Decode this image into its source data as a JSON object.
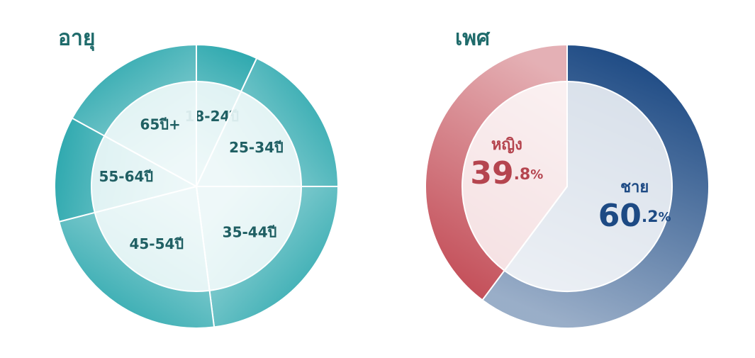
{
  "chart_data": [
    {
      "type": "pie",
      "title": "อายุ",
      "categories": [
        "18-24ปี",
        "25-34ปี",
        "35-44ปี",
        "45-54ปี",
        "55-64ปี",
        "65ปี+"
      ],
      "values": [
        7,
        18,
        23,
        23,
        12,
        17
      ],
      "color": "#2fa9af"
    },
    {
      "type": "pie",
      "title": "เพศ",
      "categories": [
        "ชาย",
        "หญิง"
      ],
      "values": [
        60.2,
        39.8
      ],
      "value_labels": [
        "60.2%",
        "39.8%"
      ],
      "colors": [
        "#1d4a84",
        "#c4505a"
      ]
    }
  ]
}
